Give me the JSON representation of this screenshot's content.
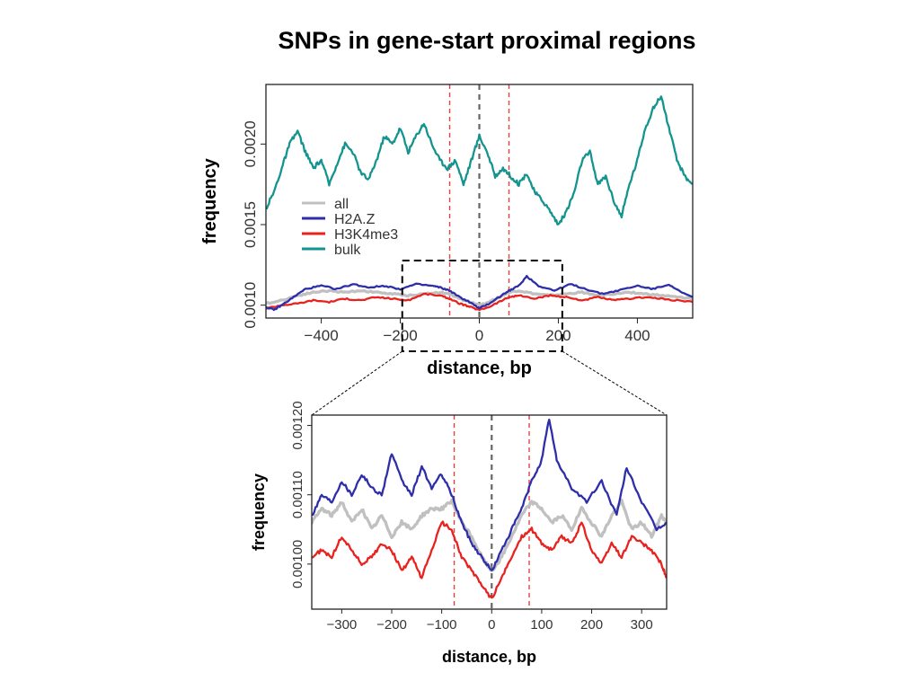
{
  "title": "SNPs in gene-start proximal regions",
  "colors": {
    "all": "#c0c0c0",
    "H2A.Z": "#2e2eab",
    "H3K4me3": "#e8221e",
    "bulk": "#14948e",
    "tss_line": "#666666",
    "window_line": "#e84040"
  },
  "chart_data": [
    {
      "type": "line",
      "xlabel": "distance, bp",
      "ylabel": "frequency",
      "xlim": [
        -540,
        540
      ],
      "ylim": [
        0.00092,
        0.00237
      ],
      "xticks": [
        "-400",
        "-200",
        "0",
        "200",
        "400"
      ],
      "yticks": [
        "0.0010",
        "0.0015",
        "0.0020"
      ],
      "vlines": [
        -75,
        0,
        75
      ],
      "legend": [
        "all",
        "H2A.Z",
        "H3K4me3",
        "bulk"
      ],
      "legend_position": "left",
      "zoom_box": [
        -195,
        210
      ],
      "series": [
        {
          "name": "all",
          "x": [
            -540,
            -500,
            -460,
            -420,
            -380,
            -340,
            -300,
            -260,
            -220,
            -180,
            -140,
            -100,
            -75,
            -50,
            -25,
            0,
            25,
            50,
            75,
            100,
            140,
            180,
            220,
            260,
            300,
            340,
            380,
            420,
            460,
            500,
            540
          ],
          "y": [
            0.00101,
            0.00103,
            0.00106,
            0.00108,
            0.00109,
            0.00108,
            0.00109,
            0.00108,
            0.00107,
            0.00106,
            0.00107,
            0.00108,
            0.00107,
            0.00104,
            0.00102,
            0.001,
            0.00102,
            0.00105,
            0.00108,
            0.00109,
            0.00107,
            0.00106,
            0.00107,
            0.00108,
            0.00106,
            0.00107,
            0.00108,
            0.00107,
            0.00106,
            0.00105,
            0.00104
          ]
        },
        {
          "name": "H2A.Z",
          "x": [
            -540,
            -520,
            -500,
            -470,
            -440,
            -400,
            -360,
            -320,
            -280,
            -240,
            -200,
            -160,
            -120,
            -100,
            -75,
            -50,
            -25,
            0,
            25,
            50,
            75,
            100,
            120,
            150,
            190,
            230,
            270,
            310,
            350,
            400,
            440,
            480,
            510,
            540
          ],
          "y": [
            0.00099,
            0.00097,
            0.001,
            0.00105,
            0.0011,
            0.00112,
            0.0011,
            0.00113,
            0.00111,
            0.00112,
            0.0011,
            0.00113,
            0.00112,
            0.00111,
            0.00109,
            0.00105,
            0.00102,
            0.00098,
            0.00101,
            0.00105,
            0.00109,
            0.00112,
            0.00118,
            0.00112,
            0.00109,
            0.00113,
            0.0011,
            0.00107,
            0.00109,
            0.00112,
            0.0011,
            0.00113,
            0.00108,
            0.00105
          ]
        },
        {
          "name": "H3K4me3",
          "x": [
            -540,
            -500,
            -460,
            -420,
            -380,
            -340,
            -300,
            -260,
            -220,
            -180,
            -140,
            -100,
            -75,
            -50,
            -25,
            0,
            25,
            50,
            75,
            100,
            140,
            180,
            220,
            260,
            300,
            340,
            380,
            420,
            460,
            500,
            540
          ],
          "y": [
            0.00098,
            0.001,
            0.00101,
            0.00103,
            0.00102,
            0.00104,
            0.00103,
            0.00105,
            0.00104,
            0.00103,
            0.00107,
            0.00106,
            0.00104,
            0.00101,
            0.00099,
            0.00097,
            0.00099,
            0.00102,
            0.00105,
            0.00106,
            0.00104,
            0.00106,
            0.00105,
            0.00103,
            0.00105,
            0.00103,
            0.00104,
            0.00105,
            0.00104,
            0.00103,
            0.00102
          ]
        },
        {
          "name": "bulk",
          "x": [
            -540,
            -520,
            -500,
            -480,
            -460,
            -440,
            -420,
            -400,
            -380,
            -360,
            -340,
            -320,
            -300,
            -280,
            -260,
            -240,
            -220,
            -200,
            -180,
            -160,
            -140,
            -120,
            -100,
            -80,
            -60,
            -40,
            -20,
            0,
            20,
            40,
            60,
            80,
            100,
            120,
            140,
            160,
            180,
            200,
            220,
            240,
            260,
            280,
            300,
            320,
            340,
            360,
            380,
            400,
            420,
            440,
            460,
            480,
            500,
            520,
            540
          ],
          "y": [
            0.0016,
            0.0017,
            0.00185,
            0.002,
            0.00208,
            0.00195,
            0.00185,
            0.0019,
            0.00175,
            0.00188,
            0.002,
            0.00195,
            0.00182,
            0.00178,
            0.0019,
            0.00205,
            0.002,
            0.0021,
            0.00195,
            0.00205,
            0.00213,
            0.002,
            0.0019,
            0.00185,
            0.0019,
            0.00175,
            0.0019,
            0.00205,
            0.00195,
            0.0018,
            0.00185,
            0.0018,
            0.00175,
            0.00182,
            0.0017,
            0.00165,
            0.00158,
            0.0015,
            0.00158,
            0.0017,
            0.0019,
            0.00195,
            0.00175,
            0.0018,
            0.00165,
            0.00155,
            0.00175,
            0.0019,
            0.0021,
            0.00222,
            0.0023,
            0.0021,
            0.0019,
            0.0018,
            0.00175
          ]
        }
      ]
    },
    {
      "type": "line",
      "xlabel": "distance, bp",
      "ylabel": "frequency",
      "xlim": [
        -360,
        350
      ],
      "ylim": [
        0.000935,
        0.001215
      ],
      "xticks": [
        "-300",
        "-200",
        "-100",
        "0",
        "100",
        "200",
        "300"
      ],
      "yticks": [
        "0.00100",
        "0.00110",
        "0.00120"
      ],
      "vlines": [
        -75,
        0,
        75
      ],
      "series": [
        {
          "name": "all",
          "x": [
            -360,
            -340,
            -320,
            -300,
            -280,
            -260,
            -240,
            -220,
            -200,
            -180,
            -160,
            -140,
            -120,
            -100,
            -80,
            -60,
            -40,
            -20,
            0,
            20,
            40,
            60,
            80,
            100,
            120,
            140,
            160,
            180,
            200,
            220,
            240,
            260,
            280,
            300,
            320,
            340,
            350
          ],
          "y": [
            0.00106,
            0.00108,
            0.00107,
            0.00109,
            0.00106,
            0.00108,
            0.00105,
            0.00107,
            0.00104,
            0.00106,
            0.00105,
            0.00107,
            0.00108,
            0.00108,
            0.00109,
            0.00106,
            0.00104,
            0.00101,
            0.00099,
            0.00101,
            0.00104,
            0.00107,
            0.00109,
            0.00108,
            0.00106,
            0.00107,
            0.00105,
            0.00108,
            0.00106,
            0.00104,
            0.00107,
            0.00109,
            0.00105,
            0.00106,
            0.00104,
            0.00107,
            0.00106
          ]
        },
        {
          "name": "H2A.Z",
          "x": [
            -360,
            -340,
            -320,
            -300,
            -280,
            -260,
            -240,
            -220,
            -200,
            -180,
            -160,
            -140,
            -120,
            -100,
            -80,
            -60,
            -40,
            -20,
            0,
            20,
            40,
            60,
            80,
            100,
            115,
            130,
            160,
            190,
            220,
            250,
            270,
            300,
            330,
            350
          ],
          "y": [
            0.00107,
            0.0011,
            0.00109,
            0.00112,
            0.0011,
            0.00113,
            0.00111,
            0.0011,
            0.00116,
            0.00112,
            0.0011,
            0.00114,
            0.00111,
            0.00113,
            0.0011,
            0.00106,
            0.00103,
            0.00101,
            0.00099,
            0.00102,
            0.00105,
            0.00108,
            0.00112,
            0.00115,
            0.00121,
            0.00115,
            0.00111,
            0.00109,
            0.00112,
            0.00107,
            0.00114,
            0.00109,
            0.00105,
            0.00106
          ]
        },
        {
          "name": "H3K4me3",
          "x": [
            -360,
            -340,
            -320,
            -300,
            -280,
            -260,
            -240,
            -220,
            -200,
            -180,
            -160,
            -140,
            -120,
            -100,
            -80,
            -60,
            -40,
            -20,
            0,
            20,
            40,
            60,
            80,
            100,
            120,
            140,
            160,
            180,
            200,
            220,
            240,
            260,
            280,
            300,
            320,
            340,
            350
          ],
          "y": [
            0.00101,
            0.00102,
            0.00101,
            0.00104,
            0.00102,
            0.001,
            0.00101,
            0.00103,
            0.00102,
            0.00099,
            0.00101,
            0.00098,
            0.00102,
            0.00106,
            0.00105,
            0.00101,
            0.00099,
            0.00097,
            0.00095,
            0.00098,
            0.00101,
            0.00104,
            0.00105,
            0.00103,
            0.00102,
            0.00104,
            0.00103,
            0.00106,
            0.00102,
            0.001,
            0.00103,
            0.00101,
            0.00104,
            0.00103,
            0.00102,
            0.001,
            0.00098
          ]
        }
      ]
    }
  ]
}
